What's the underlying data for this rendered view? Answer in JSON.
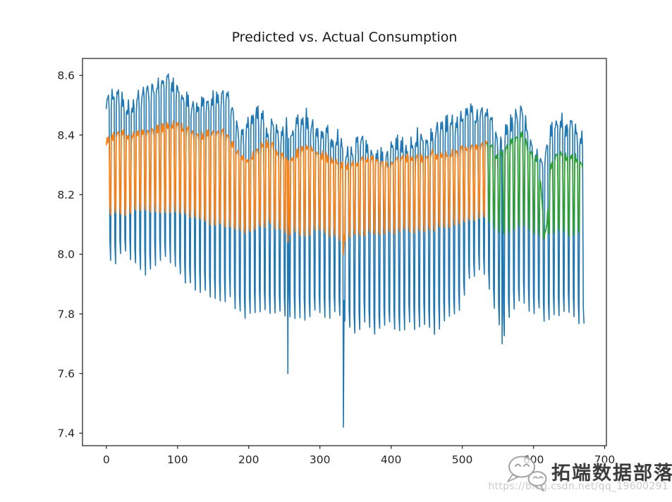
{
  "watermark": {
    "brand_text": "拓端数据部落",
    "url_text": "https://blog.csdn.net/qq_19600291",
    "icon": "chat-bubbles-icon",
    "brand_color": "#3c3c3c",
    "url_color": "#cbcbcb"
  },
  "chart_data": {
    "type": "line",
    "title": "Predicted vs. Actual Consumption",
    "xlabel": "",
    "ylabel": "",
    "grid": false,
    "legend": "none",
    "xlim": [
      -33.5,
      702.5
    ],
    "ylim": [
      7.358,
      8.657
    ],
    "x_ticks": [
      0,
      100,
      200,
      300,
      400,
      500,
      600,
      700
    ],
    "x_tick_labels": [
      "0",
      "100",
      "200",
      "300",
      "400",
      "500",
      "600",
      "700"
    ],
    "y_ticks": [
      7.4,
      7.6,
      7.8,
      8.0,
      8.2,
      8.4,
      8.6
    ],
    "y_tick_labels": [
      "7.4",
      "7.6",
      "7.8",
      "8.0",
      "8.2",
      "8.4",
      "8.6"
    ],
    "frame_color": "#2b2b2b",
    "tick_color": "#2b2b2b",
    "tick_label_color": "#262626",
    "weekly_period": 7,
    "weekday_shape": [
      0.93,
      1.0,
      0.97,
      1.0,
      0.94
    ],
    "weekend_levels": [
      0.1,
      0.0
    ],
    "series": [
      {
        "name": "actual-consumption",
        "color": "#1f77b4",
        "line_width": 1.6,
        "x_start": 0,
        "x_end": 671,
        "jitter": 0.024,
        "peak_envelope": [
          [
            0,
            8.52
          ],
          [
            10,
            8.54
          ],
          [
            20,
            8.55
          ],
          [
            30,
            8.5
          ],
          [
            40,
            8.52
          ],
          [
            55,
            8.56
          ],
          [
            70,
            8.57
          ],
          [
            85,
            8.6
          ],
          [
            95,
            8.58
          ],
          [
            105,
            8.55
          ],
          [
            115,
            8.52
          ],
          [
            125,
            8.5
          ],
          [
            135,
            8.54
          ],
          [
            145,
            8.52
          ],
          [
            155,
            8.54
          ],
          [
            165,
            8.56
          ],
          [
            172,
            8.55
          ],
          [
            180,
            8.46
          ],
          [
            190,
            8.4
          ],
          [
            200,
            8.44
          ],
          [
            210,
            8.49
          ],
          [
            220,
            8.46
          ],
          [
            228,
            8.42
          ],
          [
            236,
            8.46
          ],
          [
            244,
            8.4
          ],
          [
            252,
            8.44
          ],
          [
            260,
            8.42
          ],
          [
            268,
            8.45
          ],
          [
            276,
            8.48
          ],
          [
            284,
            8.46
          ],
          [
            292,
            8.42
          ],
          [
            300,
            8.4
          ],
          [
            310,
            8.42
          ],
          [
            318,
            8.38
          ],
          [
            326,
            8.4
          ],
          [
            333,
            8.36
          ],
          [
            340,
            8.34
          ],
          [
            348,
            8.36
          ],
          [
            356,
            8.4
          ],
          [
            364,
            8.38
          ],
          [
            372,
            8.35
          ],
          [
            380,
            8.36
          ],
          [
            390,
            8.33
          ],
          [
            400,
            8.36
          ],
          [
            410,
            8.39
          ],
          [
            420,
            8.36
          ],
          [
            430,
            8.38
          ],
          [
            440,
            8.41
          ],
          [
            450,
            8.38
          ],
          [
            460,
            8.42
          ],
          [
            470,
            8.44
          ],
          [
            480,
            8.46
          ],
          [
            490,
            8.44
          ],
          [
            500,
            8.47
          ],
          [
            510,
            8.49
          ],
          [
            518,
            8.46
          ],
          [
            526,
            8.48
          ],
          [
            535,
            8.5
          ],
          [
            543,
            8.44
          ],
          [
            550,
            8.38
          ],
          [
            558,
            8.41
          ],
          [
            566,
            8.44
          ],
          [
            574,
            8.46
          ],
          [
            582,
            8.52
          ],
          [
            590,
            8.44
          ],
          [
            598,
            8.36
          ],
          [
            606,
            8.34
          ],
          [
            614,
            8.31
          ],
          [
            622,
            8.4
          ],
          [
            630,
            8.44
          ],
          [
            638,
            8.46
          ],
          [
            646,
            8.43
          ],
          [
            654,
            8.45
          ],
          [
            662,
            8.42
          ],
          [
            671,
            8.4
          ]
        ],
        "trough_envelope": [
          [
            0,
            8.0
          ],
          [
            12,
            7.97
          ],
          [
            25,
            8.01
          ],
          [
            40,
            7.97
          ],
          [
            55,
            7.94
          ],
          [
            70,
            7.97
          ],
          [
            85,
            7.99
          ],
          [
            100,
            7.94
          ],
          [
            115,
            7.9
          ],
          [
            130,
            7.88
          ],
          [
            145,
            7.86
          ],
          [
            160,
            7.84
          ],
          [
            172,
            7.86
          ],
          [
            185,
            7.8
          ],
          [
            200,
            7.79
          ],
          [
            215,
            7.82
          ],
          [
            230,
            7.8
          ],
          [
            245,
            7.81
          ],
          [
            258,
            7.8
          ],
          [
            270,
            7.79
          ],
          [
            282,
            7.77
          ],
          [
            295,
            7.81
          ],
          [
            308,
            7.78
          ],
          [
            320,
            7.8
          ],
          [
            330,
            7.79
          ],
          [
            340,
            7.76
          ],
          [
            352,
            7.74
          ],
          [
            364,
            7.78
          ],
          [
            376,
            7.72
          ],
          [
            388,
            7.75
          ],
          [
            400,
            7.77
          ],
          [
            412,
            7.74
          ],
          [
            424,
            7.77
          ],
          [
            436,
            7.75
          ],
          [
            448,
            7.77
          ],
          [
            460,
            7.74
          ],
          [
            472,
            7.77
          ],
          [
            484,
            7.79
          ],
          [
            496,
            7.81
          ],
          [
            508,
            7.9
          ],
          [
            518,
            7.94
          ],
          [
            528,
            7.96
          ],
          [
            538,
            7.88
          ],
          [
            548,
            7.78
          ],
          [
            558,
            7.73
          ],
          [
            568,
            7.8
          ],
          [
            578,
            7.83
          ],
          [
            588,
            7.85
          ],
          [
            598,
            7.8
          ],
          [
            608,
            7.81
          ],
          [
            616,
            7.76
          ],
          [
            624,
            7.8
          ],
          [
            634,
            7.79
          ],
          [
            644,
            7.81
          ],
          [
            654,
            7.8
          ],
          [
            662,
            7.77
          ],
          [
            671,
            7.77
          ]
        ],
        "anomalies": [
          [
            255,
            7.6
          ],
          [
            333,
            7.42
          ],
          [
            556,
            7.7
          ]
        ]
      },
      {
        "name": "predicted-train",
        "color": "#ff7f0e",
        "line_width": 1.7,
        "x_start": 0,
        "x_end": 535,
        "jitter": 0.012,
        "peak_envelope": [
          [
            0,
            8.39
          ],
          [
            20,
            8.41
          ],
          [
            40,
            8.4
          ],
          [
            60,
            8.42
          ],
          [
            80,
            8.43
          ],
          [
            100,
            8.44
          ],
          [
            115,
            8.42
          ],
          [
            130,
            8.4
          ],
          [
            145,
            8.41
          ],
          [
            160,
            8.42
          ],
          [
            172,
            8.4
          ],
          [
            185,
            8.34
          ],
          [
            200,
            8.32
          ],
          [
            215,
            8.36
          ],
          [
            230,
            8.38
          ],
          [
            245,
            8.33
          ],
          [
            258,
            8.32
          ],
          [
            270,
            8.35
          ],
          [
            282,
            8.37
          ],
          [
            295,
            8.35
          ],
          [
            308,
            8.33
          ],
          [
            320,
            8.32
          ],
          [
            333,
            8.3
          ],
          [
            345,
            8.3
          ],
          [
            358,
            8.32
          ],
          [
            370,
            8.33
          ],
          [
            382,
            8.31
          ],
          [
            395,
            8.3
          ],
          [
            408,
            8.32
          ],
          [
            420,
            8.33
          ],
          [
            432,
            8.32
          ],
          [
            445,
            8.33
          ],
          [
            458,
            8.34
          ],
          [
            470,
            8.33
          ],
          [
            482,
            8.34
          ],
          [
            495,
            8.35
          ],
          [
            508,
            8.36
          ],
          [
            520,
            8.37
          ],
          [
            535,
            8.38
          ]
        ],
        "trough_envelope": [
          [
            0,
            8.14
          ],
          [
            25,
            8.13
          ],
          [
            50,
            8.15
          ],
          [
            75,
            8.14
          ],
          [
            100,
            8.14
          ],
          [
            125,
            8.12
          ],
          [
            150,
            8.1
          ],
          [
            172,
            8.09
          ],
          [
            185,
            8.08
          ],
          [
            200,
            8.07
          ],
          [
            215,
            8.09
          ],
          [
            230,
            8.1
          ],
          [
            245,
            8.08
          ],
          [
            258,
            8.07
          ],
          [
            270,
            8.07
          ],
          [
            282,
            8.06
          ],
          [
            295,
            8.08
          ],
          [
            308,
            8.07
          ],
          [
            320,
            8.06
          ],
          [
            333,
            8.04
          ],
          [
            345,
            8.06
          ],
          [
            358,
            8.06
          ],
          [
            370,
            8.07
          ],
          [
            382,
            8.06
          ],
          [
            395,
            8.07
          ],
          [
            408,
            8.07
          ],
          [
            420,
            8.08
          ],
          [
            432,
            8.07
          ],
          [
            445,
            8.08
          ],
          [
            458,
            8.08
          ],
          [
            470,
            8.09
          ],
          [
            482,
            8.09
          ],
          [
            495,
            8.1
          ],
          [
            508,
            8.11
          ],
          [
            520,
            8.12
          ],
          [
            535,
            8.13
          ]
        ],
        "anomalies": [
          [
            255,
            8.04
          ],
          [
            333,
            8.0
          ]
        ]
      },
      {
        "name": "predicted-test",
        "color": "#2ca02c",
        "line_width": 1.7,
        "x_start": 535,
        "x_end": 669,
        "jitter": 0.012,
        "peak_envelope": [
          [
            535,
            8.38
          ],
          [
            542,
            8.36
          ],
          [
            549,
            8.33
          ],
          [
            556,
            8.34
          ],
          [
            563,
            8.36
          ],
          [
            570,
            8.38
          ],
          [
            577,
            8.4
          ],
          [
            584,
            8.41
          ],
          [
            591,
            8.37
          ],
          [
            598,
            8.34
          ],
          [
            605,
            8.32
          ],
          [
            610,
            8.25
          ],
          [
            613,
            8.14
          ],
          [
            616,
            8.07
          ],
          [
            619,
            8.1
          ],
          [
            623,
            8.28
          ],
          [
            628,
            8.33
          ],
          [
            635,
            8.35
          ],
          [
            642,
            8.34
          ],
          [
            649,
            8.33
          ],
          [
            656,
            8.34
          ],
          [
            663,
            8.32
          ],
          [
            669,
            8.31
          ]
        ],
        "trough_envelope": [
          [
            535,
            8.12
          ],
          [
            545,
            8.09
          ],
          [
            555,
            8.07
          ],
          [
            565,
            8.07
          ],
          [
            575,
            8.08
          ],
          [
            585,
            8.1
          ],
          [
            595,
            8.08
          ],
          [
            605,
            8.07
          ],
          [
            615,
            8.05
          ],
          [
            625,
            8.07
          ],
          [
            635,
            8.08
          ],
          [
            645,
            8.07
          ],
          [
            655,
            8.06
          ],
          [
            663,
            8.07
          ],
          [
            669,
            8.07
          ]
        ],
        "anomalies": []
      }
    ]
  }
}
